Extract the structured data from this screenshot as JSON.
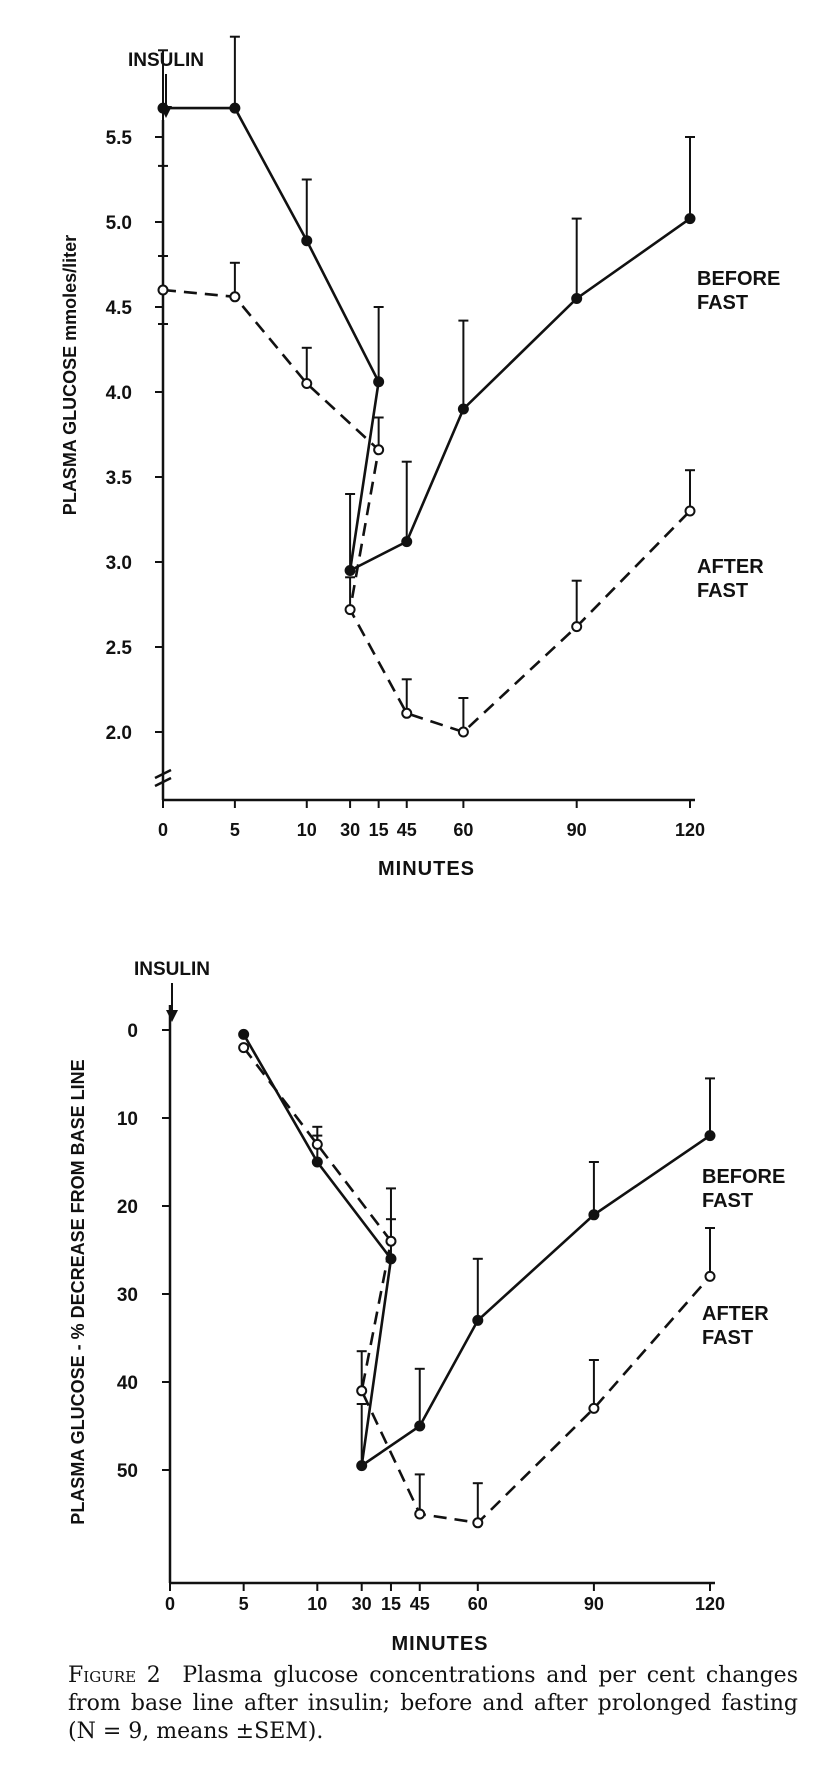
{
  "caption": {
    "label": "Figure 2",
    "text": "Plasma glucose concentrations and per cent changes from base line after insulin; before and after prolonged fasting (N = 9, means ±SEM)."
  },
  "chart_data": [
    {
      "type": "line",
      "annotation": "INSULIN",
      "xlabel": "MINUTES",
      "ylabel": "PLASMA GLUCOSE mmoles/liter",
      "x_ticks": [
        0,
        5,
        10,
        15,
        30,
        45,
        60,
        90,
        120
      ],
      "y_ticks": [
        2.0,
        2.5,
        3.0,
        3.5,
        4.0,
        4.5,
        5.0,
        5.5
      ],
      "ylim": [
        1.55,
        5.8
      ],
      "xlim": [
        0,
        120
      ],
      "axis_break": true,
      "series": [
        {
          "name": "BEFORE FAST",
          "style": "solid-filled",
          "x": [
            0,
            5,
            10,
            15,
            30,
            45,
            60,
            90,
            120
          ],
          "y": [
            5.67,
            5.67,
            4.89,
            4.06,
            2.95,
            3.12,
            3.9,
            4.55,
            5.02
          ],
          "sem": [
            0.34,
            0.42,
            0.36,
            0.44,
            0.45,
            0.47,
            0.52,
            0.47,
            0.48
          ]
        },
        {
          "name": "AFTER FAST",
          "style": "dashed-open",
          "x": [
            0,
            5,
            10,
            15,
            30,
            45,
            60,
            90,
            120
          ],
          "y": [
            4.6,
            4.56,
            4.05,
            3.66,
            2.72,
            2.11,
            2.0,
            2.62,
            3.3
          ],
          "sem": [
            0.2,
            0.2,
            0.21,
            0.19,
            0.19,
            0.2,
            0.2,
            0.27,
            0.24
          ]
        }
      ]
    },
    {
      "type": "line",
      "annotation": "INSULIN",
      "xlabel": "MINUTES",
      "ylabel": "PLASMA GLUCOSE - % DECREASE FROM BASE LINE",
      "x_ticks": [
        0,
        5,
        10,
        15,
        30,
        45,
        60,
        90,
        120
      ],
      "y_ticks": [
        0,
        10,
        20,
        30,
        40,
        50
      ],
      "ylim": [
        0,
        60
      ],
      "xlim": [
        0,
        120
      ],
      "inverted_y": true,
      "series": [
        {
          "name": "BEFORE FAST",
          "style": "solid-filled",
          "x": [
            5,
            10,
            15,
            30,
            45,
            60,
            90,
            120
          ],
          "y": [
            0.5,
            15,
            26,
            49.5,
            45,
            33,
            21,
            12
          ],
          "sem": [
            0,
            3,
            4.5,
            7,
            6.5,
            7,
            6,
            6.5
          ]
        },
        {
          "name": "AFTER FAST",
          "style": "dashed-open",
          "x": [
            5,
            10,
            15,
            30,
            45,
            60,
            90,
            120
          ],
          "y": [
            2,
            13,
            24,
            41,
            55,
            56,
            43,
            28
          ],
          "sem": [
            0,
            2,
            6,
            4.5,
            4.5,
            4.5,
            5.5,
            5.5
          ]
        }
      ]
    }
  ]
}
